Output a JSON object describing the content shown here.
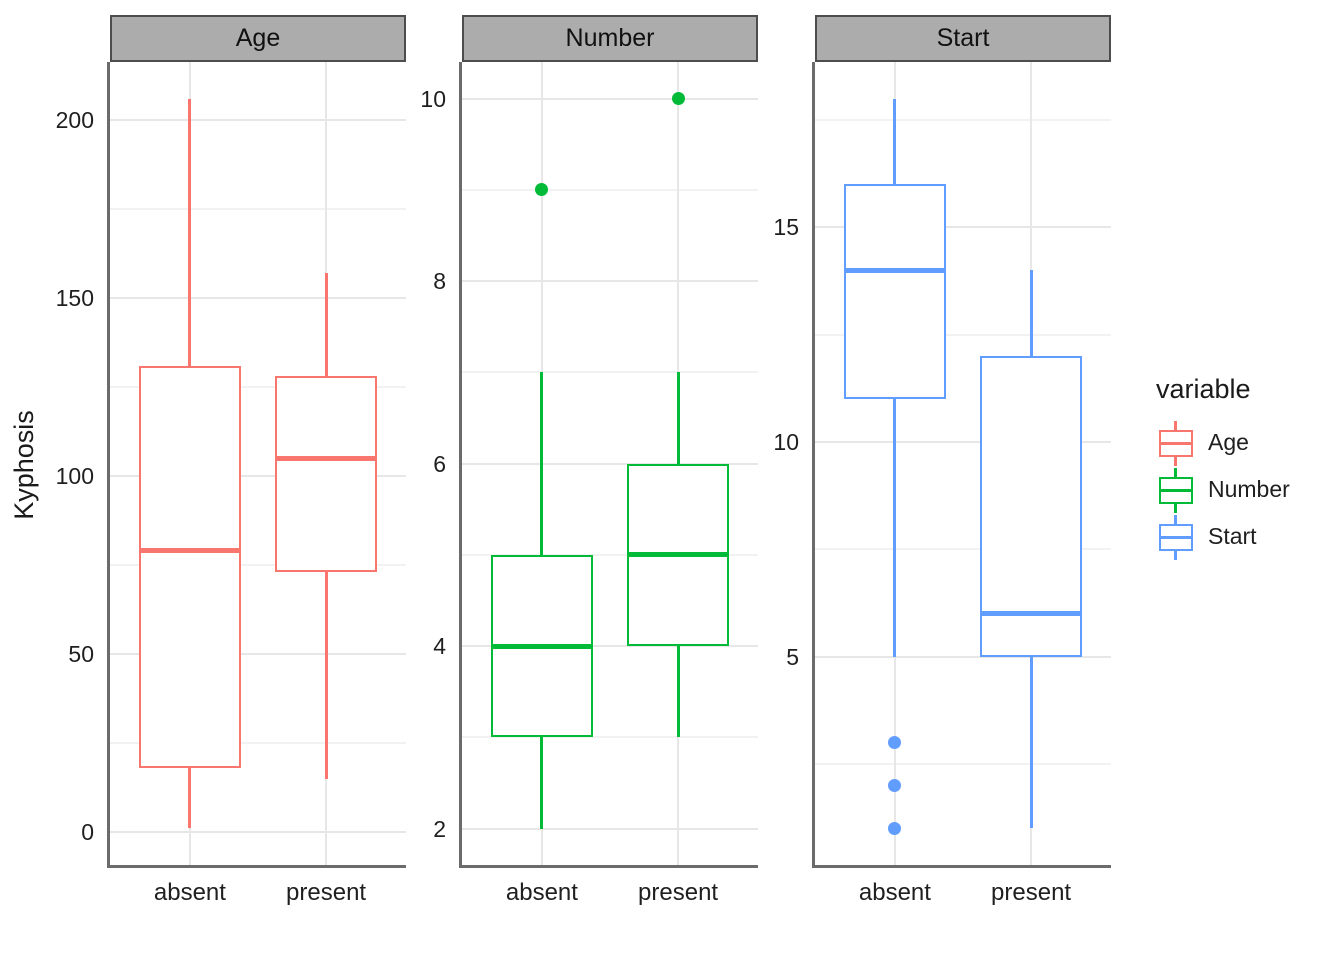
{
  "chart_data": {
    "type": "boxplot",
    "title": "",
    "ylabel": "Kyphosis",
    "x_categories": [
      "absent",
      "present"
    ],
    "grid": true,
    "legend": {
      "title": "variable",
      "position": "right",
      "entries": [
        {
          "label": "Age",
          "color": "#F8766D"
        },
        {
          "label": "Number",
          "color": "#00BA38"
        },
        {
          "label": "Start",
          "color": "#619CFF"
        }
      ]
    },
    "facets": [
      {
        "label": "Age",
        "color": "#F8766D",
        "ylim": [
          -9.25,
          216.25
        ],
        "major_ticks": [
          0,
          50,
          100,
          150,
          200
        ],
        "minor_ticks": [
          25,
          75,
          125,
          175
        ],
        "boxes": [
          {
            "category": "absent",
            "whisker_low": 1,
            "q1": 18,
            "median": 79,
            "q3": 131,
            "whisker_high": 206,
            "outliers": []
          },
          {
            "category": "present",
            "whisker_low": 15,
            "q1": 73,
            "median": 105,
            "q3": 128,
            "whisker_high": 157,
            "outliers": []
          }
        ]
      },
      {
        "label": "Number",
        "color": "#00BA38",
        "ylim": [
          1.6,
          10.4
        ],
        "major_ticks": [
          2,
          4,
          6,
          8,
          10
        ],
        "minor_ticks": [
          3,
          5,
          7,
          9
        ],
        "boxes": [
          {
            "category": "absent",
            "whisker_low": 2,
            "q1": 3,
            "median": 4,
            "q3": 5,
            "whisker_high": 7,
            "outliers": [
              9
            ]
          },
          {
            "category": "present",
            "whisker_low": 3,
            "q1": 4,
            "median": 5,
            "q3": 6,
            "whisker_high": 7,
            "outliers": [
              10
            ]
          }
        ]
      },
      {
        "label": "Start",
        "color": "#619CFF",
        "ylim": [
          0.15,
          18.85
        ],
        "major_ticks": [
          5,
          10,
          15
        ],
        "minor_ticks": [
          2.5,
          7.5,
          12.5,
          17.5
        ],
        "boxes": [
          {
            "category": "absent",
            "whisker_low": 5,
            "q1": 11,
            "median": 14,
            "q3": 16,
            "whisker_high": 18,
            "outliers": [
              3,
              2,
              1
            ]
          },
          {
            "category": "present",
            "whisker_low": 1,
            "q1": 5,
            "median": 6,
            "q3": 12,
            "whisker_high": 14,
            "outliers": []
          }
        ]
      }
    ],
    "colors": {
      "strip_fill": "#ACACAC",
      "strip_border": "#4D4D4D",
      "grid_major": "#E7E7E7",
      "grid_minor": "#F2F2F2",
      "axis_line": "#6B6B6B",
      "text": "#1A1A1A",
      "background": "#FFFFFF"
    }
  }
}
